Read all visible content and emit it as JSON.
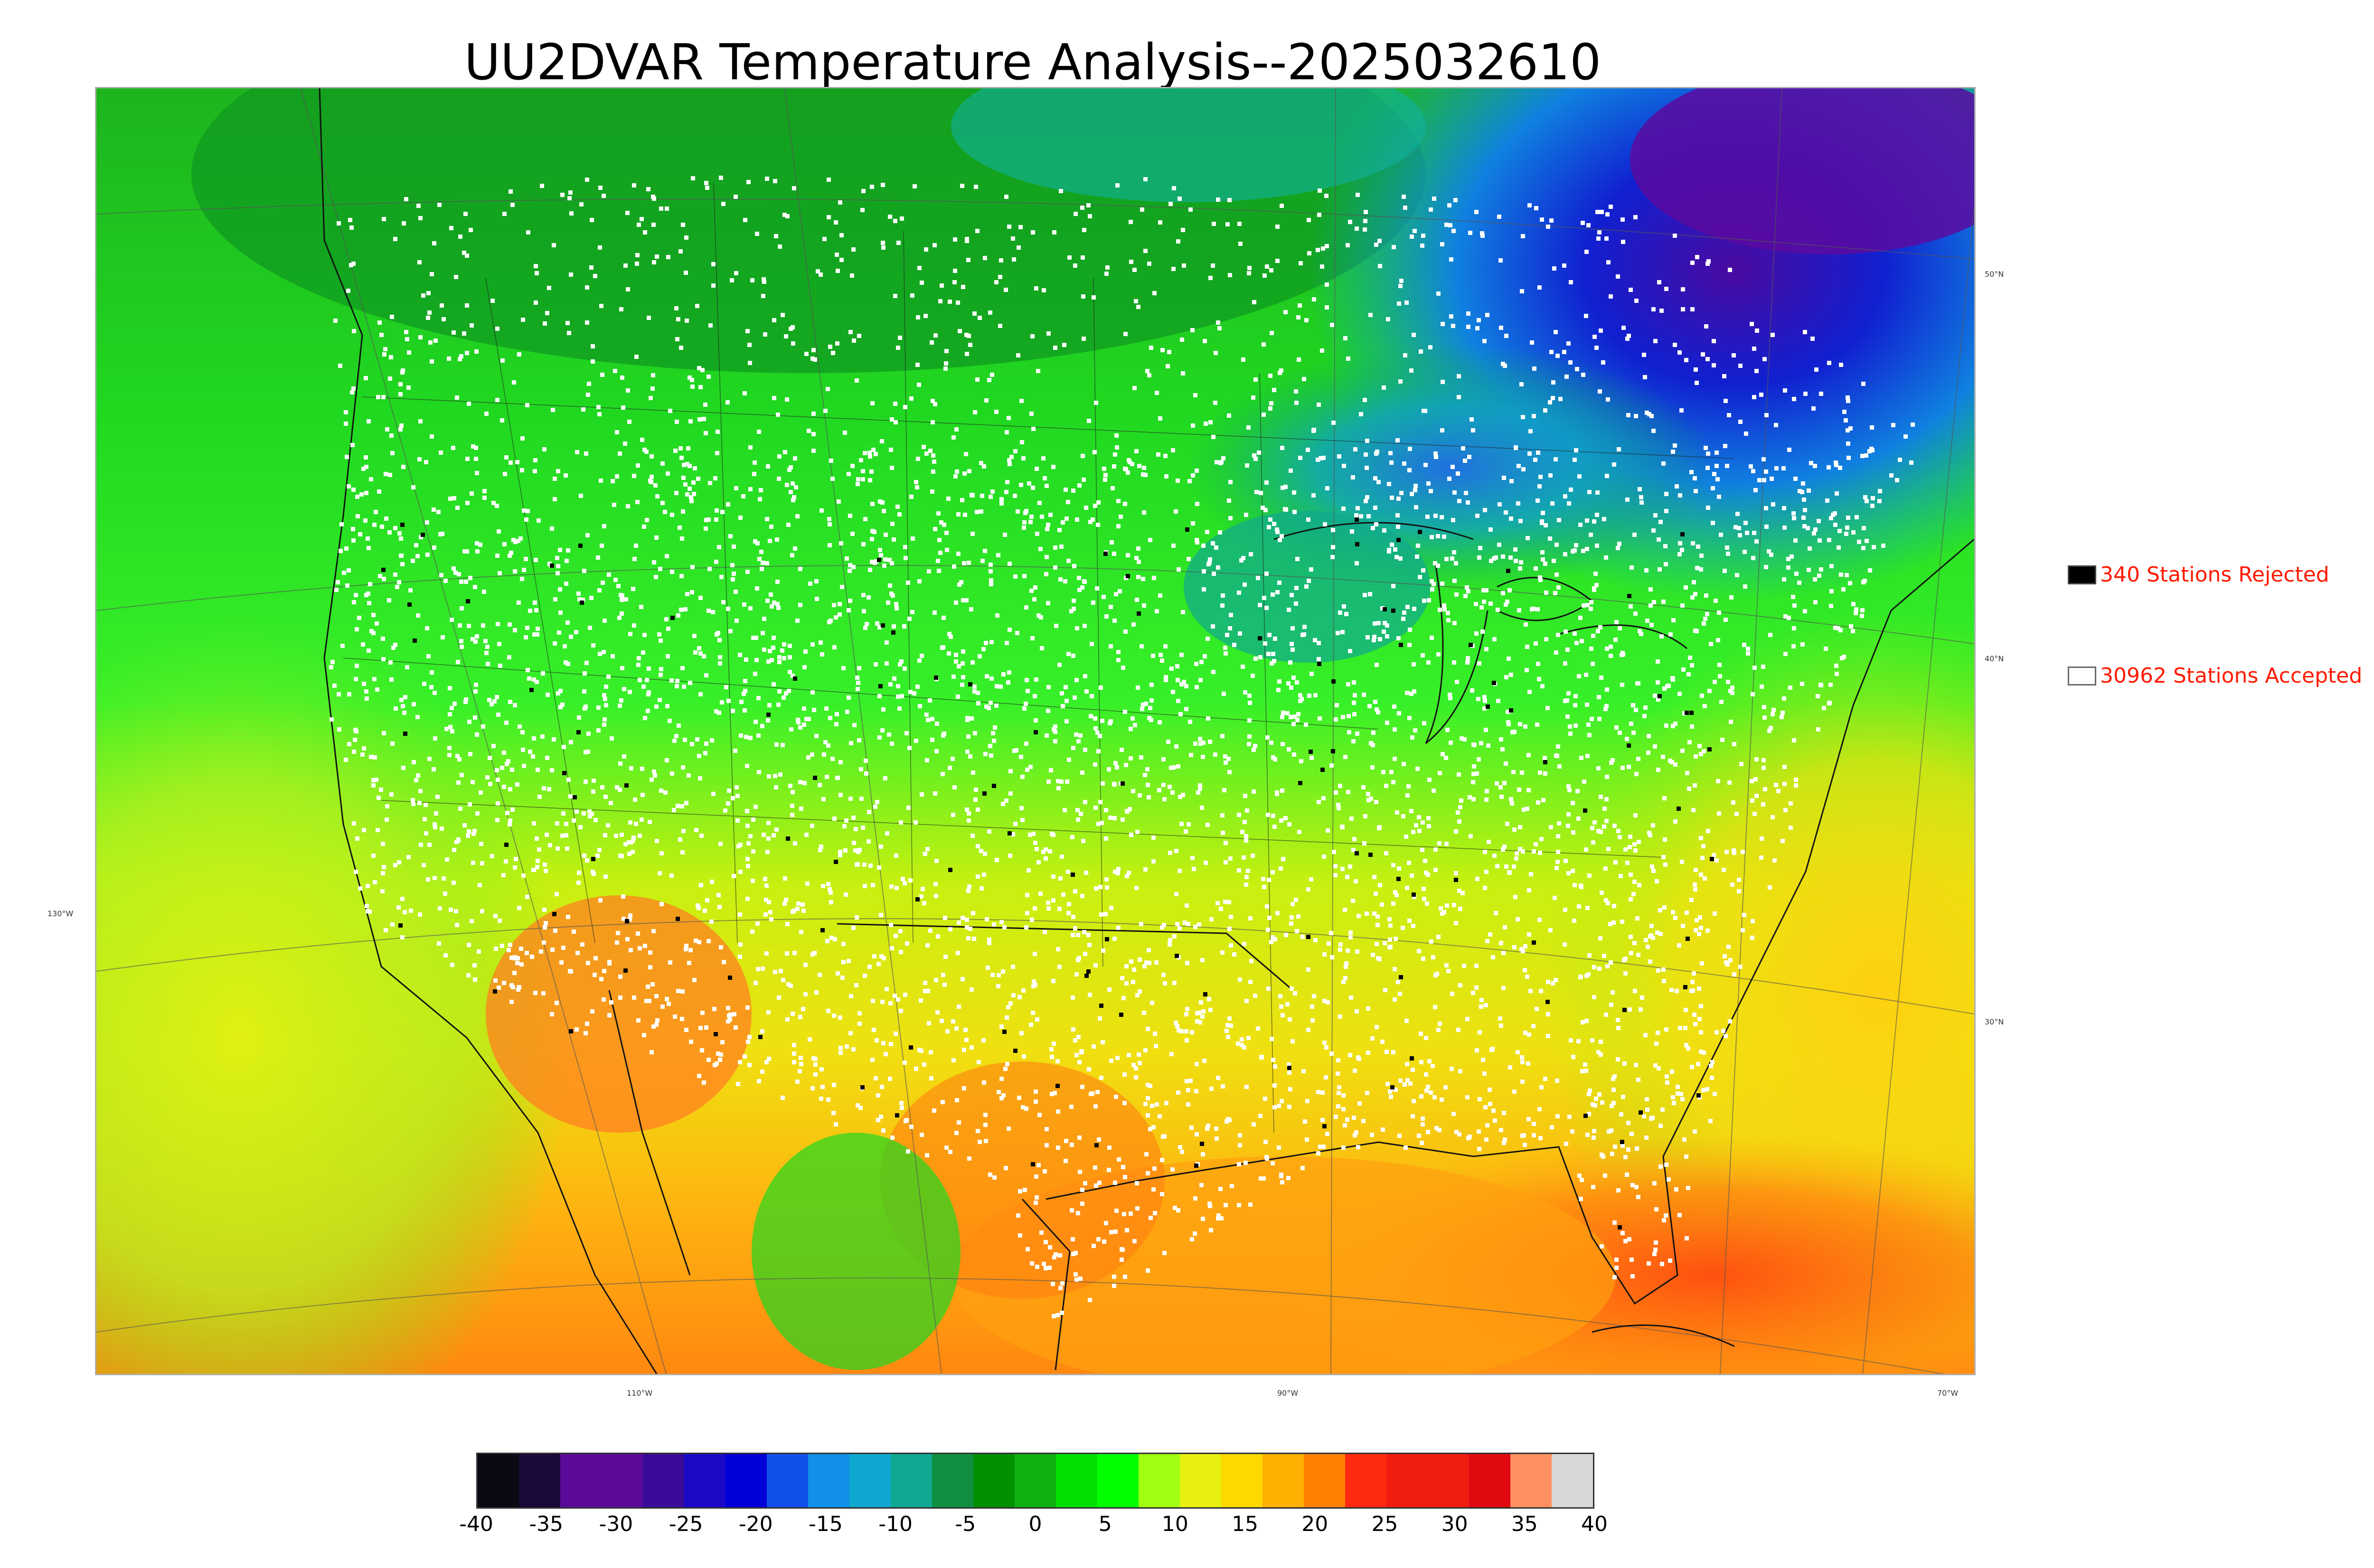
{
  "title": "UU2DVAR Temperature Analysis--2025032610",
  "legend": {
    "rejected": {
      "label": "340 Stations Rejected",
      "swatch_color": "#000000"
    },
    "accepted": {
      "label": "30962 Stations Accepted",
      "swatch_color": "#ffffff"
    }
  },
  "map": {
    "latitude_labels": [
      "50°N",
      "40°N",
      "30°N"
    ],
    "longitude_labels": [
      "130°W",
      "110°W",
      "90°W",
      "70°W"
    ]
  },
  "colorbar": {
    "ticks": [
      "-40",
      "-35",
      "-30",
      "-25",
      "-20",
      "-15",
      "-10",
      "-5",
      "0",
      "5",
      "10",
      "15",
      "20",
      "25",
      "30",
      "35",
      "40"
    ],
    "range": [
      -40,
      40
    ],
    "colors": [
      "#0a0a14",
      "#1a0a3a",
      "#5b0a9a",
      "#5b0a9a",
      "#3a0a9a",
      "#1a0ac8",
      "#0000d8",
      "#1050e8",
      "#1090e8",
      "#10a8d0",
      "#10a890",
      "#109040",
      "#009000",
      "#10b010",
      "#00e000",
      "#00ff00",
      "#a0ff10",
      "#e8f010",
      "#ffd800",
      "#ffb000",
      "#ff8000",
      "#ff2a10",
      "#f01c10",
      "#f01c10",
      "#e00a10",
      "#ff9060",
      "#d8d8d8"
    ]
  }
}
